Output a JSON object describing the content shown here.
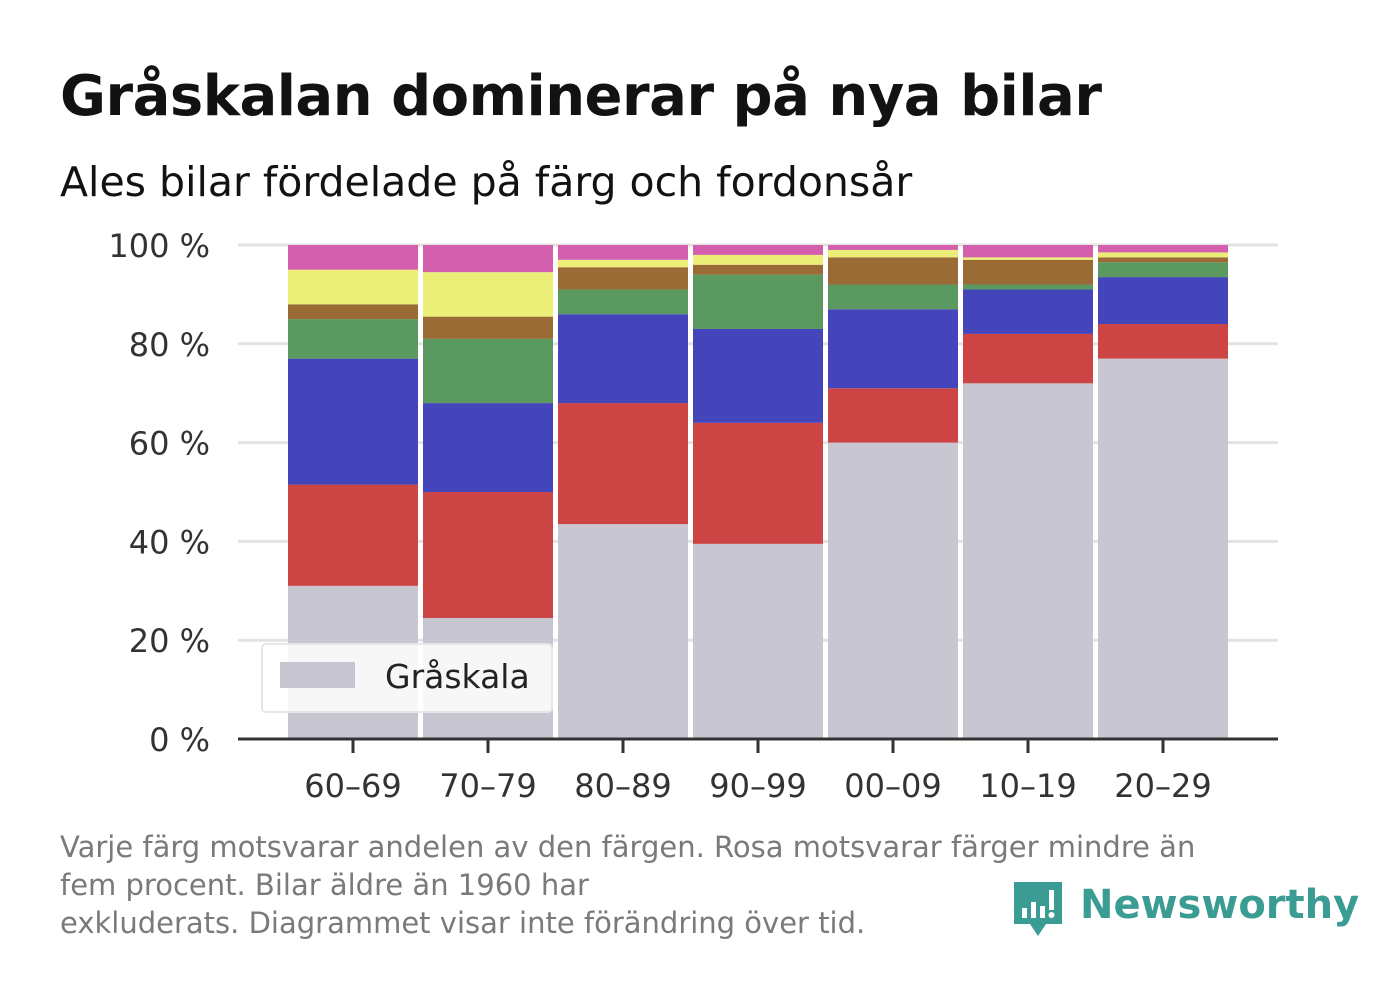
{
  "title": "Gråskalan dominerar på nya bilar",
  "subtitle": "Ales bilar fördelade på färg och fordonsår",
  "footnote": [
    "Varje färg motsvarar andelen av den färgen. Rosa motsvarar färger mindre än",
    "fem procent. Bilar äldre än 1960 har",
    "exkluderats. Diagrammet visar inte förändring över tid."
  ],
  "brand": {
    "name": "Newsworthy",
    "color": "#3a9c92"
  },
  "chart_data": {
    "type": "bar",
    "stacked": true,
    "categories": [
      "60–69",
      "70–79",
      "80–89",
      "90–99",
      "00–09",
      "10–19",
      "20–29"
    ],
    "yticks": [
      "0 %",
      "20 %",
      "40 %",
      "60 %",
      "80 %",
      "100 %"
    ],
    "ylim": [
      0,
      100
    ],
    "grid": true,
    "legend": {
      "position": "bottom-left",
      "entries": [
        "Gråskala"
      ]
    },
    "series": [
      {
        "name": "Gråskala",
        "color": "#c8c6d0",
        "values": [
          31,
          24.5,
          43.5,
          39.5,
          60,
          72,
          77
        ]
      },
      {
        "color": "#cc4444",
        "values": [
          20.5,
          25.5,
          24.5,
          24.5,
          11,
          10,
          7
        ]
      },
      {
        "color": "#4444bb",
        "values": [
          25.5,
          18,
          18,
          19,
          16,
          9,
          9.5
        ]
      },
      {
        "color": "#5a9a60",
        "values": [
          8,
          13,
          5,
          11,
          5,
          1,
          3
        ]
      },
      {
        "color": "#9a6b35",
        "values": [
          3,
          4.5,
          4.5,
          2,
          5.5,
          5,
          1
        ]
      },
      {
        "color": "#ebee77",
        "values": [
          7,
          9,
          1.5,
          2,
          1.5,
          0.5,
          1
        ]
      },
      {
        "color": "#d45fac",
        "values": [
          5,
          5.5,
          3,
          2,
          1,
          2.5,
          1.5
        ]
      }
    ]
  }
}
